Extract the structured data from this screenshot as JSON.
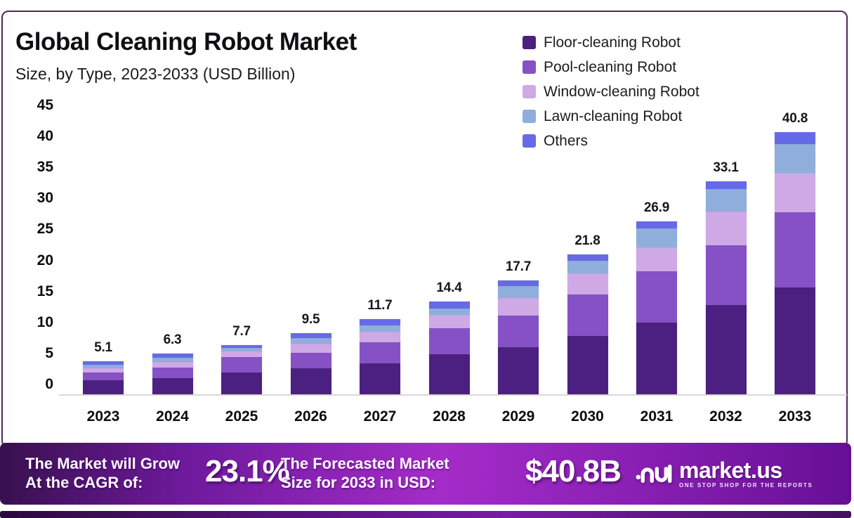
{
  "header": {
    "title": "Global Cleaning Robot Market",
    "subtitle": "Size, by Type, 2023-2033 (USD Billion)"
  },
  "chart_data": {
    "type": "bar",
    "stacked": true,
    "title": "Global Cleaning Robot Market Size, by Type, 2023-2033 (USD Billion)",
    "categories": [
      "2023",
      "2024",
      "2025",
      "2026",
      "2027",
      "2028",
      "2029",
      "2030",
      "2031",
      "2032",
      "2033"
    ],
    "series": [
      {
        "name": "Floor-cleaning Robot",
        "color": "#4B2081",
        "values": [
          2.2,
          2.5,
          3.4,
          4.0,
          4.8,
          6.2,
          7.3,
          9.1,
          11.2,
          13.9,
          16.6
        ]
      },
      {
        "name": "Pool-cleaning Robot",
        "color": "#8651C5",
        "values": [
          1.2,
          1.7,
          2.4,
          2.5,
          3.3,
          4.1,
          5.0,
          6.4,
          7.9,
          9.3,
          11.7
        ]
      },
      {
        "name": "Window-cleaning Robot",
        "color": "#CFA9E6",
        "values": [
          0.6,
          0.8,
          0.9,
          1.4,
          1.6,
          2.1,
          2.7,
          3.3,
          3.8,
          5.2,
          6.2
        ]
      },
      {
        "name": "Lawn-cleaning Robot",
        "color": "#8FAEDC",
        "values": [
          0.6,
          0.7,
          0.5,
          0.8,
          1.0,
          1.0,
          1.8,
          2.0,
          2.9,
          3.5,
          4.4
        ]
      },
      {
        "name": "Others",
        "color": "#666AE6",
        "values": [
          0.5,
          0.6,
          0.5,
          0.8,
          1.0,
          1.0,
          0.9,
          1.0,
          1.1,
          1.2,
          1.9
        ]
      }
    ],
    "totals": [
      5.1,
      6.3,
      7.7,
      9.5,
      11.7,
      14.4,
      17.7,
      21.8,
      26.9,
      33.1,
      40.8
    ],
    "ylim": [
      0,
      45
    ],
    "ytick_step": 5,
    "grid": false,
    "legend_position": "top-right"
  },
  "footer": {
    "cagr_label_line1": "The Market will Grow",
    "cagr_label_line2": "At the CAGR of:",
    "cagr_value": "23.1%",
    "forecast_label_line1": "The Forecasted Market",
    "forecast_label_line2": "Size for 2033 in USD:",
    "forecast_value": "$40.8B",
    "brand": "market.us",
    "brand_tagline": "ONE STOP SHOP FOR THE REPORTS"
  },
  "colors": {
    "banner_gradient_start": "#38104e",
    "banner_gradient_mid": "#a42cc8",
    "banner_gradient_end": "#660f95",
    "card_border": "#4e2a5c",
    "axis_text": "#0c0c0f"
  }
}
